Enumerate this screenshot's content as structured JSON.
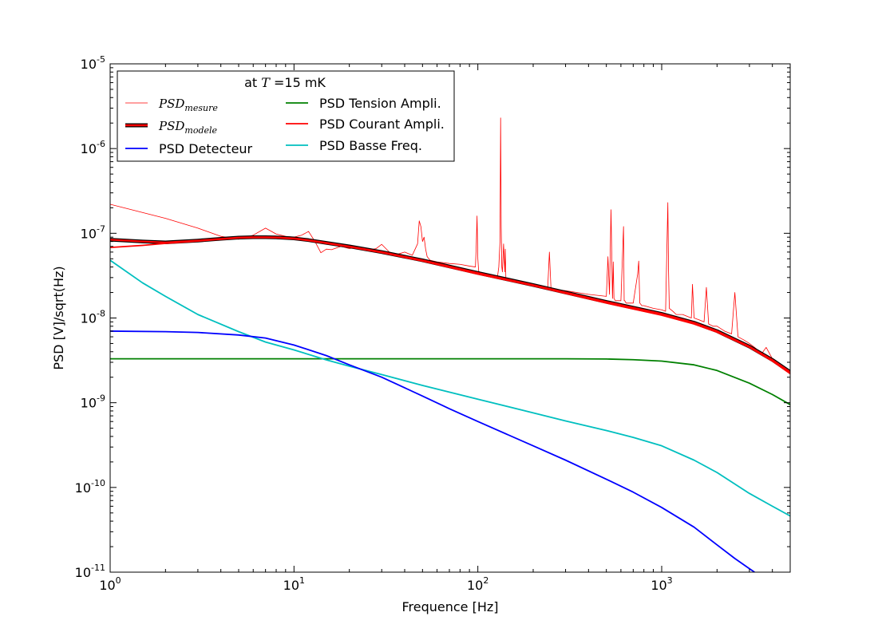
{
  "chart_data": {
    "type": "line",
    "xlabel": "Frequence [Hz]",
    "ylabel": "PSD [V]/sqrt(Hz)",
    "xscale": "log",
    "yscale": "log",
    "xlim": [
      1,
      5000
    ],
    "ylim": [
      1e-11,
      1e-05
    ],
    "grid": false,
    "x_ticks": [
      {
        "value": 1,
        "base": "10",
        "exp": "0"
      },
      {
        "value": 10,
        "base": "10",
        "exp": "1"
      },
      {
        "value": 100,
        "base": "10",
        "exp": "2"
      },
      {
        "value": 1000,
        "base": "10",
        "exp": "3"
      }
    ],
    "y_ticks": [
      {
        "value": 1e-11,
        "base": "10",
        "exp": "-11"
      },
      {
        "value": 1e-10,
        "base": "10",
        "exp": "-10"
      },
      {
        "value": 1e-09,
        "base": "10",
        "exp": "-9"
      },
      {
        "value": 1e-08,
        "base": "10",
        "exp": "-8"
      },
      {
        "value": 1e-07,
        "base": "10",
        "exp": "-7"
      },
      {
        "value": 1e-06,
        "base": "10",
        "exp": "-6"
      },
      {
        "value": 1e-05,
        "base": "10",
        "exp": "-5"
      }
    ],
    "legend": {
      "placement": "top-left",
      "title_prefix": "at ",
      "title_var": "T",
      "title_suffix": " =15 mK"
    },
    "series": [
      {
        "name_base": "PSD",
        "name_sub": "mesure",
        "color": "#ff0000",
        "style": "thin",
        "x": [
          1,
          2,
          3,
          4,
          5,
          6,
          7,
          8,
          9,
          10,
          11,
          12,
          13,
          14,
          15,
          16,
          18,
          20,
          22,
          25,
          28,
          30,
          33,
          36,
          40,
          44,
          47,
          48,
          49,
          50,
          51,
          52,
          53,
          55,
          60,
          70,
          80,
          90,
          97,
          98,
          99,
          100,
          101,
          102,
          105,
          110,
          120,
          128,
          130,
          132,
          133,
          134,
          135,
          136,
          138,
          140,
          141,
          142,
          145,
          150,
          170,
          200,
          240,
          245,
          250,
          255,
          300,
          400,
          500,
          510,
          520,
          530,
          540,
          545,
          550,
          560,
          600,
          620,
          625,
          630,
          640,
          700,
          740,
          750,
          760,
          780,
          800,
          900,
          1000,
          1050,
          1080,
          1090,
          1100,
          1150,
          1200,
          1300,
          1450,
          1470,
          1500,
          1600,
          1700,
          1750,
          1800,
          1900,
          2000,
          2200,
          2400,
          2500,
          2600,
          2800,
          3000,
          3200,
          3500,
          3700,
          4000,
          4500,
          5000
        ],
        "y": [
          2.2e-07,
          1.5e-07,
          1.15e-07,
          9.2e-08,
          8.5e-08,
          9.5e-08,
          1.15e-07,
          9.8e-08,
          9.2e-08,
          9e-08,
          9.5e-08,
          1.05e-07,
          8e-08,
          5.9e-08,
          6.5e-08,
          6.4e-08,
          7e-08,
          6.6e-08,
          6.8e-08,
          6.3e-08,
          6.6e-08,
          7.4e-08,
          6e-08,
          5.6e-08,
          6e-08,
          5.5e-08,
          7.5e-08,
          1.4e-07,
          1.2e-07,
          8e-08,
          9e-08,
          6.5e-08,
          5.3e-08,
          4.8e-08,
          4.6e-08,
          4.4e-08,
          4.3e-08,
          4.1e-08,
          4e-08,
          7e-08,
          1.6e-07,
          5e-08,
          3.6e-08,
          3.5e-08,
          3.4e-08,
          3.3e-08,
          3.2e-08,
          3.1e-08,
          4e-08,
          8e-08,
          2.3e-06,
          1.2e-07,
          4e-08,
          3.5e-08,
          7.5e-08,
          3.5e-08,
          6.5e-08,
          3e-08,
          2.9e-08,
          2.9e-08,
          2.7e-08,
          2.5e-08,
          2.3e-08,
          6e-08,
          2.2e-08,
          2.2e-08,
          2.1e-08,
          1.9e-08,
          1.8e-08,
          5.3e-08,
          1.9e-08,
          1.9e-07,
          1.7e-08,
          4.6e-08,
          1.7e-08,
          1.6e-08,
          1.6e-08,
          1.2e-07,
          1.6e-08,
          1.6e-08,
          1.5e-08,
          1.5e-08,
          3.3e-08,
          4.7e-08,
          1.5e-08,
          1.4e-08,
          1.4e-08,
          1.3e-08,
          1.25e-08,
          1.2e-08,
          2.3e-07,
          3.5e-08,
          1.3e-08,
          1.2e-08,
          1.1e-08,
          1.1e-08,
          1e-08,
          2.5e-08,
          1e-08,
          9.5e-09,
          9e-09,
          2.3e-08,
          8.5e-09,
          8e-09,
          8e-09,
          7e-09,
          6.5e-09,
          2e-08,
          6e-09,
          5.5e-09,
          5e-09,
          4.5e-09,
          3.8e-09,
          4.5e-09,
          3.3e-09,
          2.8e-09,
          2.3e-09
        ]
      },
      {
        "name_base": "PSD",
        "name_sub": "modele",
        "color": "#ff0000",
        "style": "thick",
        "x": [
          1,
          1.5,
          2,
          3,
          4,
          5,
          6,
          7,
          8,
          10,
          12,
          15,
          20,
          30,
          50,
          100,
          200,
          500,
          1000,
          1500,
          2000,
          3000,
          4000,
          5000
        ],
        "y": [
          8.4e-08,
          8e-08,
          7.8e-08,
          8.2e-08,
          8.6e-08,
          8.9e-08,
          9e-08,
          9e-08,
          8.95e-08,
          8.7e-08,
          8.3e-08,
          7.7e-08,
          7e-08,
          6e-08,
          4.8e-08,
          3.4e-08,
          2.45e-08,
          1.55e-08,
          1.12e-08,
          8.8e-09,
          7e-09,
          4.6e-09,
          3.2e-09,
          2.3e-09
        ]
      },
      {
        "name": "PSD Detecteur",
        "color": "#0000ff",
        "style": "normal",
        "x": [
          1,
          2,
          3,
          5,
          7,
          10,
          15,
          20,
          30,
          50,
          70,
          100,
          200,
          300,
          500,
          700,
          1000,
          1500,
          2000,
          2500,
          3000,
          3200
        ],
        "y": [
          7e-09,
          6.9e-09,
          6.75e-09,
          6.3e-09,
          5.8e-09,
          4.8e-09,
          3.6e-09,
          2.8e-09,
          2e-09,
          1.2e-09,
          8.5e-10,
          6e-10,
          3.1e-10,
          2.1e-10,
          1.25e-10,
          8.8e-11,
          5.8e-11,
          3.4e-11,
          2.1e-11,
          1.45e-11,
          1.1e-11,
          1e-11
        ]
      },
      {
        "name": "PSD Tension Ampli.",
        "color": "#008000",
        "style": "normal",
        "x": [
          1,
          10,
          100,
          300,
          500,
          700,
          1000,
          1500,
          2000,
          3000,
          4000,
          5000
        ],
        "y": [
          3.3e-09,
          3.3e-09,
          3.3e-09,
          3.3e-09,
          3.28e-09,
          3.22e-09,
          3.1e-09,
          2.8e-09,
          2.4e-09,
          1.7e-09,
          1.25e-09,
          9.5e-10
        ]
      },
      {
        "name": "PSD Courant Ampli.",
        "color": "#ff0000",
        "style": "normal",
        "x": [
          1,
          1.5,
          2,
          3,
          4,
          5,
          6,
          7,
          8,
          10,
          12,
          15,
          20,
          30,
          50,
          100,
          200,
          500,
          1000,
          1500,
          2000,
          3000,
          4000,
          5000
        ],
        "y": [
          6.8e-08,
          7.2e-08,
          7.6e-08,
          8.1e-08,
          8.5e-08,
          8.8e-08,
          8.9e-08,
          8.9e-08,
          8.85e-08,
          8.6e-08,
          8.2e-08,
          7.6e-08,
          6.9e-08,
          5.9e-08,
          4.7e-08,
          3.3e-08,
          2.4e-08,
          1.5e-08,
          1.08e-08,
          8.5e-09,
          6.8e-09,
          4.5e-09,
          3.1e-09,
          2.2e-09
        ]
      },
      {
        "name": "PSD Basse Freq.",
        "color": "#00bfbf",
        "style": "normal",
        "x": [
          1,
          1.5,
          2,
          3,
          5,
          7,
          10,
          15,
          20,
          30,
          50,
          100,
          200,
          300,
          500,
          700,
          1000,
          1500,
          2000,
          3000,
          4000,
          5000
        ],
        "y": [
          4.8e-08,
          2.6e-08,
          1.8e-08,
          1.1e-08,
          6.9e-09,
          5.2e-09,
          4.2e-09,
          3.2e-09,
          2.7e-09,
          2.15e-09,
          1.6e-09,
          1.1e-09,
          7.6e-10,
          6.1e-10,
          4.7e-10,
          3.9e-10,
          3.1e-10,
          2.1e-10,
          1.5e-10,
          8.5e-11,
          6e-11,
          4.6e-11
        ]
      }
    ]
  }
}
